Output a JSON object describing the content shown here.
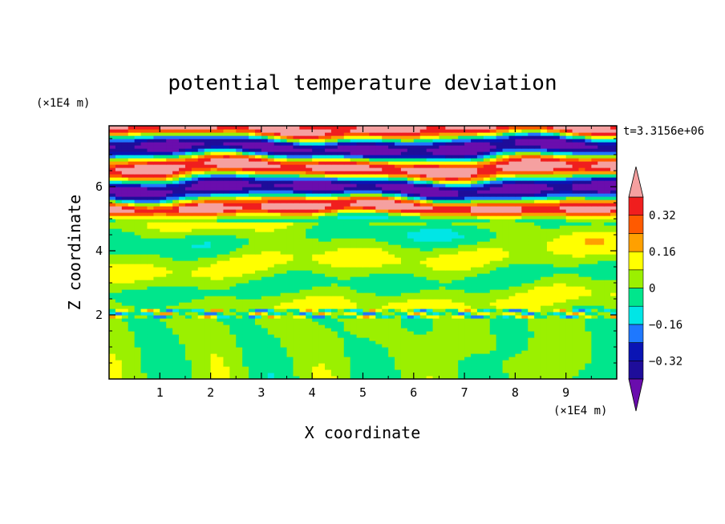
{
  "chart_data": {
    "type": "heatmap",
    "title": "potential temperature deviation",
    "xlabel": "X coordinate",
    "ylabel": "Z coordinate",
    "x_unit": "(×1E4 m)",
    "y_unit": "(×1E4 m)",
    "time_label": "t=3.3156e+06",
    "xlim": [
      0,
      10
    ],
    "ylim": [
      0,
      7.9
    ],
    "x_ticks": [
      1,
      2,
      3,
      4,
      5,
      6,
      7,
      8,
      9
    ],
    "y_ticks": [
      2,
      4,
      6
    ],
    "colorbar": {
      "levels": [
        -0.4,
        -0.32,
        -0.24,
        -0.16,
        -0.08,
        0,
        0.08,
        0.16,
        0.24,
        0.32,
        0.4
      ],
      "labels": [
        "0.32",
        "0.16",
        "0",
        "−0.16",
        "−0.32"
      ],
      "label_values": [
        0.32,
        0.16,
        0,
        -0.16,
        -0.32
      ],
      "colors": [
        "#6a0dad",
        "#1e0d9a",
        "#0a14b4",
        "#1e78ff",
        "#00e6e6",
        "#00e68c",
        "#9bf000",
        "#ffff00",
        "#ffa000",
        "#ff5a00",
        "#f01e1e",
        "#f5a0a0"
      ],
      "extend": "both"
    },
    "bands": [
      {
        "z": [
          0.0,
          1.9
        ],
        "pattern": "plumes",
        "value": 0.0
      },
      {
        "z": [
          1.9,
          2.2
        ],
        "pattern": "thin-mix",
        "value": -0.16
      },
      {
        "z": [
          2.2,
          4.9
        ],
        "pattern": "layered",
        "value": 0.04
      },
      {
        "z": [
          4.9,
          7.9
        ],
        "pattern": "strong-waves",
        "value": 0.4
      }
    ]
  }
}
